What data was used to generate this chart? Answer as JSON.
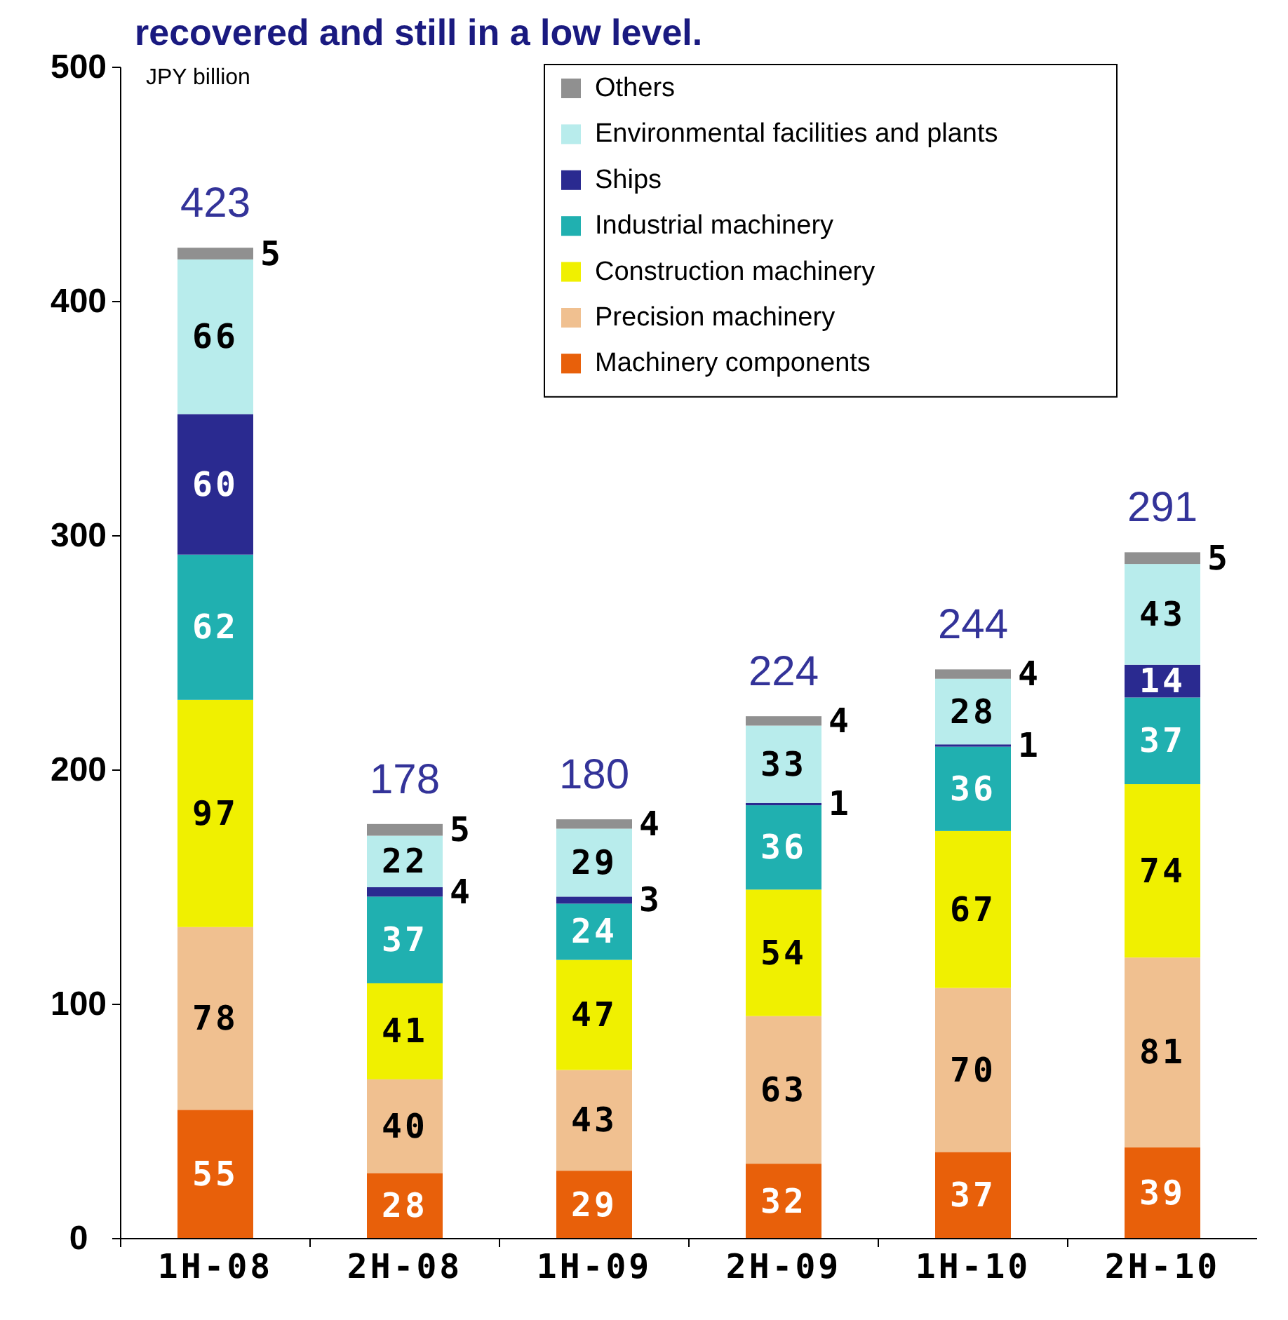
{
  "chart_data": {
    "type": "bar",
    "stacked": true,
    "title": "recovered and still in a low level.",
    "ylabel": "JPY billion",
    "categories": [
      "1H-08",
      "2H-08",
      "1H-09",
      "2H-09",
      "1H-10",
      "2H-10"
    ],
    "series": [
      {
        "name": "Machinery components",
        "color": "#e8600a",
        "values": [
          55,
          28,
          29,
          32,
          37,
          39
        ]
      },
      {
        "name": "Precision machinery",
        "color": "#f0c090",
        "values": [
          78,
          40,
          43,
          63,
          70,
          81
        ]
      },
      {
        "name": "Construction machinery",
        "color": "#f0f000",
        "values": [
          97,
          41,
          47,
          54,
          67,
          74
        ]
      },
      {
        "name": "Industrial machinery",
        "color": "#20b0b0",
        "values": [
          62,
          37,
          24,
          36,
          36,
          37
        ]
      },
      {
        "name": "Ships",
        "color": "#2a2a90",
        "values": [
          60,
          4,
          3,
          1,
          1,
          14
        ]
      },
      {
        "name": "Environmental facilities and plants",
        "color": "#b8ecec",
        "values": [
          66,
          22,
          29,
          33,
          28,
          43
        ]
      },
      {
        "name": "Others",
        "color": "#909090",
        "values": [
          5,
          5,
          4,
          4,
          4,
          5
        ]
      }
    ],
    "totals": [
      "423",
      "178",
      "180",
      "224",
      "244",
      "291"
    ],
    "data_labels": true,
    "ylim": [
      0,
      500
    ],
    "yticks": [
      0,
      100,
      200,
      300,
      400,
      500
    ],
    "grid": false,
    "legend": "top right"
  }
}
